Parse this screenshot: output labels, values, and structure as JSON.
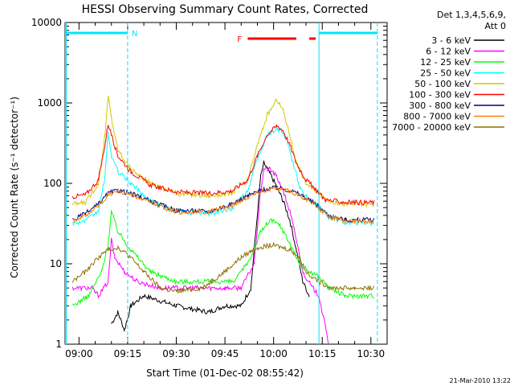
{
  "chart_data": {
    "type": "line",
    "title": "HESSI Observing Summary Count Rates, Corrected",
    "xlabel": "Start Time (01-Dec-02 08:55:42)",
    "ylabel": "Corrected Count Rate (s⁻¹ detector⁻¹)",
    "y_scale": "log",
    "ylim": [
      1,
      10000
    ],
    "xlim": [
      "08:55:42",
      "10:35:00"
    ],
    "x_ticks": [
      "09:00",
      "09:15",
      "09:30",
      "09:45",
      "10:00",
      "10:15",
      "10:30"
    ],
    "y_ticks": [
      "1",
      "10",
      "100",
      "1000",
      "10000"
    ],
    "legend_header": [
      "Det 1,3,4,5,6,9,",
      "Att 0"
    ],
    "legend_position": "right",
    "footer_date": "21-Mar-2010 13:22",
    "flags": {
      "night_label": "N",
      "flare_label": "F",
      "night_intervals": [
        [
          "08:55:42",
          "09:15:00"
        ],
        [
          "10:14:00",
          "10:32:00"
        ]
      ],
      "flare_intervals": [
        [
          "09:52:00",
          "10:07:00"
        ],
        [
          "10:11:00",
          "10:13:00"
        ]
      ],
      "vertical_lines": [
        "09:15:00",
        "10:32:00",
        "10:14:00"
      ]
    },
    "series": [
      {
        "name": "3 - 6 keV",
        "color": "#000000",
        "points": [
          [
            "08:58",
            null
          ],
          [
            "09:04",
            null
          ],
          [
            "09:10",
            1.8
          ],
          [
            "09:12",
            2.5
          ],
          [
            "09:14",
            1.5
          ],
          [
            "09:16",
            3
          ],
          [
            "09:20",
            4
          ],
          [
            "09:30",
            3
          ],
          [
            "09:40",
            2.5
          ],
          [
            "09:45",
            3
          ],
          [
            "09:50",
            3
          ],
          [
            "09:53",
            5
          ],
          [
            "09:56",
            120
          ],
          [
            "09:57",
            180
          ],
          [
            "09:59",
            130
          ],
          [
            "10:01",
            90
          ],
          [
            "10:03",
            60
          ],
          [
            "10:05",
            35
          ],
          [
            "10:07",
            15
          ],
          [
            "10:09",
            6
          ],
          [
            "10:11",
            4
          ],
          [
            "10:13",
            null
          ]
        ]
      },
      {
        "name": "6 - 12 keV",
        "color": "#ff00ff",
        "points": [
          [
            "08:58",
            5
          ],
          [
            "09:04",
            5
          ],
          [
            "09:06",
            4
          ],
          [
            "09:09",
            6
          ],
          [
            "09:10",
            20
          ],
          [
            "09:11",
            12
          ],
          [
            "09:14",
            8
          ],
          [
            "09:18",
            6
          ],
          [
            "09:25",
            5
          ],
          [
            "09:35",
            5
          ],
          [
            "09:45",
            5
          ],
          [
            "09:50",
            5
          ],
          [
            "09:54",
            10
          ],
          [
            "09:56",
            80
          ],
          [
            "09:57",
            150
          ],
          [
            "09:59",
            150
          ],
          [
            "10:01",
            120
          ],
          [
            "10:03",
            80
          ],
          [
            "10:05",
            45
          ],
          [
            "10:07",
            20
          ],
          [
            "10:09",
            8
          ],
          [
            "10:12",
            5
          ],
          [
            "10:14",
            4
          ],
          [
            "10:17",
            1
          ]
        ]
      },
      {
        "name": "12 - 25 keV",
        "color": "#00ff00",
        "points": [
          [
            "08:58",
            3
          ],
          [
            "09:03",
            4
          ],
          [
            "09:07",
            8
          ],
          [
            "09:09",
            18
          ],
          [
            "09:10",
            45
          ],
          [
            "09:12",
            25
          ],
          [
            "09:16",
            15
          ],
          [
            "09:22",
            8
          ],
          [
            "09:30",
            6
          ],
          [
            "09:40",
            6
          ],
          [
            "09:48",
            6
          ],
          [
            "09:53",
            12
          ],
          [
            "09:56",
            25
          ],
          [
            "09:59",
            35
          ],
          [
            "10:02",
            30
          ],
          [
            "10:05",
            18
          ],
          [
            "10:08",
            10
          ],
          [
            "10:11",
            8
          ],
          [
            "10:14",
            7
          ],
          [
            "10:17",
            5
          ],
          [
            "10:22",
            4
          ],
          [
            "10:26",
            4
          ],
          [
            "10:31",
            4
          ]
        ]
      },
      {
        "name": "25 - 50 keV",
        "color": "#00ffff",
        "points": [
          [
            "08:58",
            32
          ],
          [
            "09:02",
            34
          ],
          [
            "09:06",
            45
          ],
          [
            "09:08",
            120
          ],
          [
            "09:09",
            420
          ],
          [
            "09:10",
            220
          ],
          [
            "09:12",
            140
          ],
          [
            "09:16",
            100
          ],
          [
            "09:22",
            60
          ],
          [
            "09:30",
            45
          ],
          [
            "09:40",
            42
          ],
          [
            "09:47",
            48
          ],
          [
            "09:52",
            80
          ],
          [
            "09:55",
            200
          ],
          [
            "09:58",
            400
          ],
          [
            "10:00",
            450
          ],
          [
            "10:02",
            480
          ],
          [
            "10:04",
            350
          ],
          [
            "10:06",
            180
          ],
          [
            "10:08",
            90
          ],
          [
            "10:11",
            60
          ],
          [
            "10:14",
            55
          ],
          [
            "10:17",
            38
          ],
          [
            "10:22",
            33
          ],
          [
            "10:26",
            32
          ],
          [
            "10:31",
            32
          ]
        ]
      },
      {
        "name": "50 - 100 keV",
        "color": "#d4c800",
        "points": [
          [
            "08:58",
            55
          ],
          [
            "09:02",
            58
          ],
          [
            "09:06",
            100
          ],
          [
            "09:08",
            400
          ],
          [
            "09:09",
            1200
          ],
          [
            "09:10",
            650
          ],
          [
            "09:12",
            260
          ],
          [
            "09:16",
            150
          ],
          [
            "09:22",
            100
          ],
          [
            "09:30",
            75
          ],
          [
            "09:40",
            70
          ],
          [
            "09:47",
            75
          ],
          [
            "09:52",
            110
          ],
          [
            "09:55",
            300
          ],
          [
            "09:58",
            700
          ],
          [
            "10:01",
            1100
          ],
          [
            "10:03",
            800
          ],
          [
            "10:05",
            400
          ],
          [
            "10:07",
            180
          ],
          [
            "10:10",
            100
          ],
          [
            "10:13",
            80
          ],
          [
            "10:16",
            62
          ],
          [
            "10:22",
            55
          ],
          [
            "10:26",
            55
          ],
          [
            "10:31",
            55
          ]
        ]
      },
      {
        "name": "100 - 300 keV",
        "color": "#ff0000",
        "points": [
          [
            "08:58",
            68
          ],
          [
            "09:02",
            72
          ],
          [
            "09:06",
            110
          ],
          [
            "09:08",
            300
          ],
          [
            "09:09",
            550
          ],
          [
            "09:10",
            400
          ],
          [
            "09:12",
            220
          ],
          [
            "09:16",
            140
          ],
          [
            "09:22",
            95
          ],
          [
            "09:30",
            78
          ],
          [
            "09:40",
            75
          ],
          [
            "09:47",
            80
          ],
          [
            "09:52",
            110
          ],
          [
            "09:55",
            220
          ],
          [
            "09:58",
            400
          ],
          [
            "10:01",
            520
          ],
          [
            "10:03",
            450
          ],
          [
            "10:05",
            300
          ],
          [
            "10:07",
            180
          ],
          [
            "10:10",
            110
          ],
          [
            "10:13",
            85
          ],
          [
            "10:16",
            62
          ],
          [
            "10:22",
            58
          ],
          [
            "10:26",
            58
          ],
          [
            "10:31",
            58
          ]
        ]
      },
      {
        "name": "300 - 800 keV",
        "color": "#000080",
        "points": [
          [
            "08:58",
            35
          ],
          [
            "09:02",
            42
          ],
          [
            "09:06",
            55
          ],
          [
            "09:09",
            75
          ],
          [
            "09:12",
            82
          ],
          [
            "09:16",
            75
          ],
          [
            "09:22",
            60
          ],
          [
            "09:30",
            46
          ],
          [
            "09:40",
            45
          ],
          [
            "09:47",
            55
          ],
          [
            "09:52",
            70
          ],
          [
            "09:57",
            85
          ],
          [
            "10:01",
            88
          ],
          [
            "10:05",
            82
          ],
          [
            "10:09",
            70
          ],
          [
            "10:13",
            55
          ],
          [
            "10:17",
            40
          ],
          [
            "10:22",
            35
          ],
          [
            "10:26",
            35
          ],
          [
            "10:31",
            35
          ]
        ]
      },
      {
        "name": "800 - 7000 keV",
        "color": "#ff8000",
        "points": [
          [
            "08:58",
            34
          ],
          [
            "09:02",
            40
          ],
          [
            "09:06",
            52
          ],
          [
            "09:09",
            72
          ],
          [
            "09:12",
            80
          ],
          [
            "09:16",
            72
          ],
          [
            "09:22",
            58
          ],
          [
            "09:30",
            44
          ],
          [
            "09:40",
            44
          ],
          [
            "09:47",
            53
          ],
          [
            "09:52",
            68
          ],
          [
            "09:57",
            82
          ],
          [
            "10:01",
            86
          ],
          [
            "10:05",
            80
          ],
          [
            "10:09",
            68
          ],
          [
            "10:13",
            53
          ],
          [
            "10:17",
            38
          ],
          [
            "10:22",
            34
          ],
          [
            "10:26",
            34
          ],
          [
            "10:31",
            34
          ]
        ]
      },
      {
        "name": "7000 - 20000 keV",
        "color": "#8b7000",
        "points": [
          [
            "08:58",
            6
          ],
          [
            "09:02",
            8
          ],
          [
            "09:06",
            12
          ],
          [
            "09:09",
            15
          ],
          [
            "09:12",
            16
          ],
          [
            "09:15",
            13
          ],
          [
            "09:20",
            8
          ],
          [
            "09:25",
            5
          ],
          [
            "09:30",
            4.5
          ],
          [
            "09:38",
            5
          ],
          [
            "09:45",
            8
          ],
          [
            "09:50",
            12
          ],
          [
            "09:55",
            16
          ],
          [
            "10:00",
            17
          ],
          [
            "10:05",
            15
          ],
          [
            "10:08",
            12
          ],
          [
            "10:10",
            8
          ],
          [
            "10:14",
            6
          ],
          [
            "10:18",
            5
          ],
          [
            "10:25",
            5
          ],
          [
            "10:31",
            5
          ]
        ]
      }
    ]
  }
}
